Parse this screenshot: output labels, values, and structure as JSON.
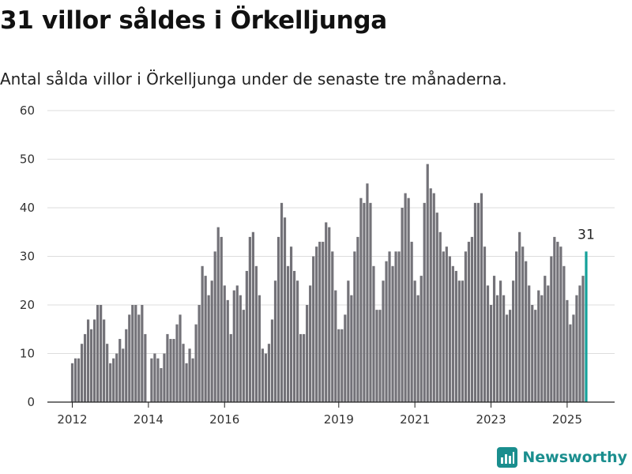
{
  "header": {
    "title": "31 villor såldes i Örkelljunga",
    "subtitle": "Antal sålda villor i Örkelljunga under de senaste tre månaderna."
  },
  "colors": {
    "bar": "#737278",
    "highlight": "#13a19a",
    "grid": "#dddddd",
    "brand": "#1a8e8e"
  },
  "brand": {
    "name": "Newsworthy",
    "icon": "bar-chart-logo-icon"
  },
  "chart_data": {
    "type": "bar",
    "start": "2012-01",
    "x_tick_labels": [
      "2012",
      "2014",
      "2016",
      "2019",
      "2021",
      "2023",
      "2025"
    ],
    "ylim": [
      0,
      60
    ],
    "y_ticks": [
      0,
      10,
      20,
      30,
      40,
      50,
      60
    ],
    "grid": true,
    "highlight_label": "31",
    "values": [
      8,
      9,
      9,
      12,
      14,
      17,
      15,
      17,
      20,
      20,
      17,
      12,
      8,
      9,
      10,
      13,
      11,
      15,
      18,
      20,
      20,
      18,
      20,
      14,
      null,
      9,
      10,
      9,
      7,
      10,
      14,
      13,
      13,
      16,
      18,
      12,
      8,
      11,
      9,
      16,
      20,
      28,
      26,
      22,
      25,
      31,
      36,
      34,
      24,
      21,
      14,
      23,
      24,
      22,
      19,
      27,
      34,
      35,
      28,
      22,
      11,
      10,
      12,
      17,
      25,
      34,
      41,
      38,
      28,
      32,
      27,
      25,
      14,
      14,
      20,
      24,
      30,
      32,
      33,
      33,
      37,
      36,
      31,
      23,
      15,
      15,
      18,
      25,
      22,
      31,
      34,
      42,
      41,
      45,
      41,
      28,
      19,
      19,
      25,
      29,
      31,
      28,
      31,
      31,
      40,
      43,
      42,
      33,
      25,
      22,
      26,
      41,
      49,
      44,
      43,
      39,
      35,
      31,
      32,
      30,
      28,
      27,
      25,
      25,
      31,
      33,
      34,
      41,
      41,
      43,
      32,
      24,
      20,
      26,
      22,
      25,
      22,
      18,
      19,
      25,
      31,
      35,
      32,
      29,
      24,
      20,
      19,
      23,
      22,
      26,
      24,
      30,
      34,
      33,
      32,
      28,
      21,
      16,
      18,
      22,
      24,
      26,
      31
    ]
  }
}
